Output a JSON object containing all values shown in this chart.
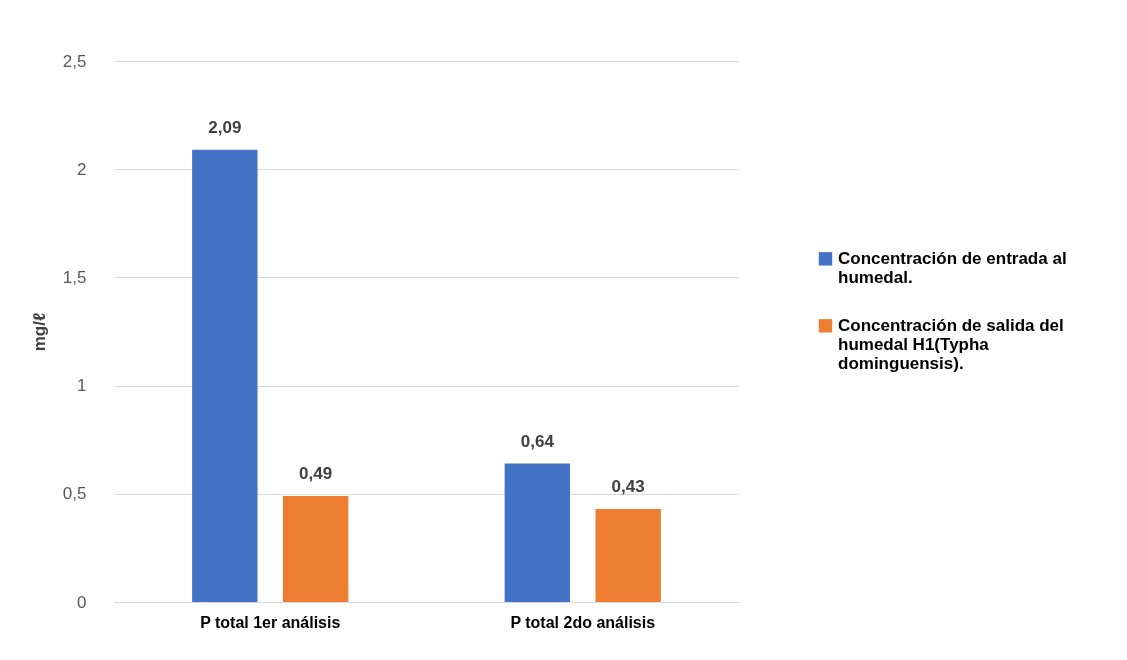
{
  "chart_data": {
    "type": "bar",
    "ylabel": "mg/ℓ",
    "categories": [
      "P total 1er análisis",
      "P total  2do análisis"
    ],
    "series": [
      {
        "name": "Concentración de entrada al humedal.",
        "color": "#4472c4",
        "values": [
          2.09,
          0.64
        ],
        "value_labels": [
          "2,09",
          "0,64"
        ]
      },
      {
        "name": "Concentración de salida del humedal H1(Typha dominguensis).",
        "color": "#ed7d31",
        "values": [
          0.49,
          0.43
        ],
        "value_labels": [
          "0,49",
          "0,43"
        ]
      }
    ],
    "ylim": [
      0,
      2.5
    ],
    "yticks": [
      0,
      {
        "value": 0.5,
        "label": "0,5"
      },
      1,
      {
        "value": 1.5,
        "label": "1,5"
      },
      2,
      {
        "value": 2.5,
        "label": "2,5"
      }
    ],
    "grid": "y",
    "legend": "right"
  }
}
